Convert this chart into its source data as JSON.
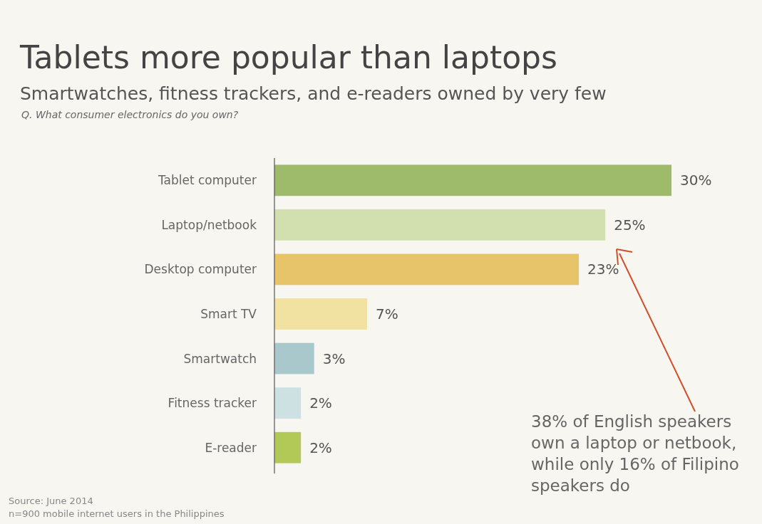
{
  "chart_data": {
    "type": "bar",
    "orientation": "horizontal",
    "title": "Tablets more popular than laptops",
    "subtitle": "Smartwatches, fitness trackers, and e-readers owned by very few",
    "categories": [
      "Tablet computer",
      "Laptop/netbook",
      "Desktop computer",
      "Smart TV",
      "Smartwatch",
      "Fitness tracker",
      "E-reader"
    ],
    "values": [
      30,
      25,
      23,
      7,
      3,
      2,
      2
    ],
    "colors": [
      "#9dbb6a",
      "#d2e0b0",
      "#e7c46a",
      "#f2e2a2",
      "#a9c8cc",
      "#cde0e2",
      "#b2c958"
    ],
    "value_labels": [
      "30%",
      "25%",
      "23%",
      "7%",
      "3%",
      "2%",
      "2%"
    ],
    "annotations": [
      "Q. What consumer electronics do you own?",
      "38% of English speakers own a laptop or netbook, while only 16% of Filipino speakers do",
      "Source: June 2014",
      "n=900 mobile internet users in the Philippines"
    ]
  }
}
